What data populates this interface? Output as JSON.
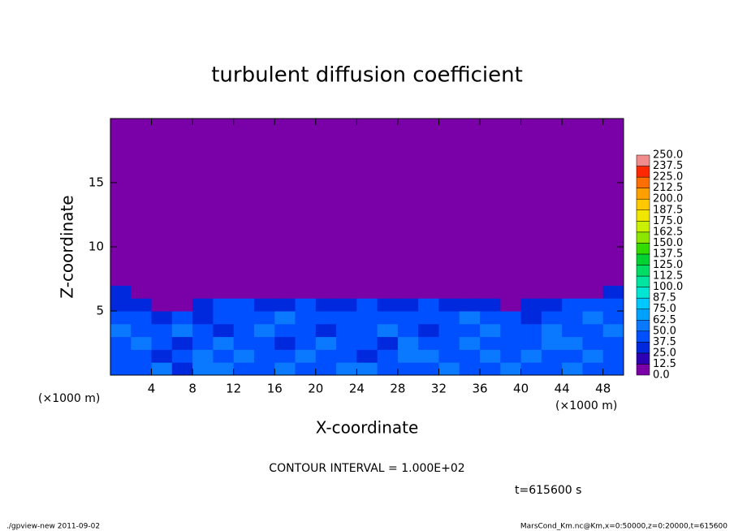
{
  "chart_data": {
    "type": "heatmap",
    "title": "turbulent diffusion coefficient",
    "x_label": "X-coordinate",
    "y_label": "Z-coordinate",
    "x_unit": "(×1000 m)",
    "y_unit": "(×1000 m)",
    "contour_note": "CONTOUR INTERVAL = 1.000E+02",
    "time_label": "t=615600 s",
    "footer_left": "./gpview-new   2011-09-02",
    "footer_right": "MarsCond_Km.nc@Km,x=0:50000,z=0:20000,t=615600",
    "xlim": [
      0,
      50
    ],
    "ylim": [
      0,
      20
    ],
    "xticks": [
      4,
      8,
      12,
      16,
      20,
      24,
      28,
      32,
      36,
      40,
      44,
      48
    ],
    "yticks": [
      5,
      10,
      15
    ],
    "x": [
      0,
      2,
      4,
      6,
      8,
      10,
      12,
      14,
      16,
      18,
      20,
      22,
      24,
      26,
      28,
      30,
      32,
      34,
      36,
      38,
      40,
      42,
      44,
      46,
      48,
      50
    ],
    "y": [
      0,
      1,
      2,
      3,
      4,
      5,
      6,
      7,
      8,
      9,
      10,
      11,
      12,
      13,
      14,
      15,
      16,
      17,
      18,
      19,
      20
    ],
    "levels": [
      {
        "value": 0,
        "label": "0.0"
      },
      {
        "value": 12.5,
        "label": "12.5"
      },
      {
        "value": 25,
        "label": "25.0"
      },
      {
        "value": 37.5,
        "label": "37.5"
      },
      {
        "value": 50,
        "label": "50.0"
      },
      {
        "value": 62.5,
        "label": "62.5"
      },
      {
        "value": 75,
        "label": "75.0"
      },
      {
        "value": 87.5,
        "label": "87.5"
      },
      {
        "value": 100,
        "label": "100.0"
      },
      {
        "value": 112.5,
        "label": "112.5"
      },
      {
        "value": 125,
        "label": "125.0"
      },
      {
        "value": 137.5,
        "label": "137.5"
      },
      {
        "value": 150,
        "label": "150.0"
      },
      {
        "value": 162.5,
        "label": "162.5"
      },
      {
        "value": 175,
        "label": "175.0"
      },
      {
        "value": 187.5,
        "label": "187.5"
      },
      {
        "value": 200,
        "label": "200.0"
      },
      {
        "value": 212.5,
        "label": "212.5"
      },
      {
        "value": 225,
        "label": "225.0"
      },
      {
        "value": 237.5,
        "label": "237.5"
      },
      {
        "value": 250,
        "label": "250.0"
      }
    ],
    "colors": [
      "#7a00a8",
      "#2d00b4",
      "#0028dc",
      "#0050ff",
      "#0a78ff",
      "#00a0ff",
      "#00c8ff",
      "#00e6d2",
      "#00e6a0",
      "#00dc64",
      "#00d232",
      "#32dc00",
      "#8ce600",
      "#c8f000",
      "#f0e600",
      "#ffc800",
      "#ffa000",
      "#ff6e00",
      "#ff2800",
      "#f08c8c"
    ],
    "z": [
      [
        45,
        40,
        50,
        35,
        60,
        55,
        45,
        40,
        50,
        45,
        40,
        55,
        50,
        45,
        40,
        45,
        50,
        40,
        45,
        55,
        40,
        45,
        50,
        45,
        40
      ],
      [
        40,
        45,
        35,
        40,
        50,
        45,
        55,
        40,
        45,
        50,
        45,
        40,
        35,
        45,
        55,
        60,
        45,
        40,
        50,
        45,
        55,
        40,
        45,
        50,
        45
      ],
      [
        45,
        50,
        40,
        35,
        45,
        50,
        40,
        45,
        35,
        40,
        50,
        45,
        40,
        35,
        50,
        45,
        40,
        50,
        45,
        40,
        45,
        50,
        55,
        45,
        40
      ],
      [
        50,
        40,
        45,
        50,
        40,
        35,
        45,
        50,
        40,
        45,
        35,
        40,
        45,
        50,
        40,
        35,
        45,
        40,
        50,
        45,
        40,
        55,
        45,
        40,
        50
      ],
      [
        40,
        45,
        35,
        40,
        35,
        45,
        40,
        45,
        50,
        40,
        45,
        40,
        45,
        40,
        45,
        40,
        45,
        50,
        40,
        45,
        35,
        40,
        45,
        50,
        45
      ],
      [
        35,
        30,
        0,
        0,
        25,
        45,
        40,
        30,
        35,
        40,
        25,
        30,
        40,
        35,
        30,
        40,
        35,
        25,
        30,
        0,
        30,
        35,
        40,
        45,
        40
      ],
      [
        30,
        0,
        0,
        0,
        0,
        0,
        0,
        0,
        0,
        0,
        0,
        0,
        0,
        0,
        0,
        0,
        0,
        0,
        0,
        0,
        0,
        0,
        0,
        0,
        30
      ],
      [
        0,
        0,
        0,
        0,
        0,
        0,
        0,
        0,
        0,
        0,
        0,
        0,
        0,
        0,
        0,
        0,
        0,
        0,
        0,
        0,
        0,
        0,
        0,
        0,
        0
      ],
      [
        0,
        0,
        0,
        0,
        0,
        0,
        0,
        0,
        0,
        0,
        0,
        0,
        0,
        0,
        0,
        0,
        0,
        0,
        0,
        0,
        0,
        0,
        0,
        0,
        0
      ],
      [
        0,
        0,
        0,
        0,
        0,
        0,
        0,
        0,
        0,
        0,
        0,
        0,
        0,
        0,
        0,
        0,
        0,
        0,
        0,
        0,
        0,
        0,
        0,
        0,
        0
      ],
      [
        0,
        0,
        0,
        0,
        0,
        0,
        0,
        0,
        0,
        0,
        0,
        0,
        0,
        0,
        0,
        0,
        0,
        0,
        0,
        0,
        0,
        0,
        0,
        0,
        0
      ],
      [
        0,
        0,
        0,
        0,
        0,
        0,
        0,
        0,
        0,
        0,
        0,
        0,
        0,
        0,
        0,
        0,
        0,
        0,
        0,
        0,
        0,
        0,
        0,
        0,
        0
      ],
      [
        0,
        0,
        0,
        0,
        0,
        0,
        0,
        0,
        0,
        0,
        0,
        0,
        0,
        0,
        0,
        0,
        0,
        0,
        0,
        0,
        0,
        0,
        0,
        0,
        0
      ],
      [
        0,
        0,
        0,
        0,
        0,
        0,
        0,
        0,
        0,
        0,
        0,
        0,
        0,
        0,
        0,
        0,
        0,
        0,
        0,
        0,
        0,
        0,
        0,
        0,
        0
      ],
      [
        0,
        0,
        0,
        0,
        0,
        0,
        0,
        0,
        0,
        0,
        0,
        0,
        0,
        0,
        0,
        0,
        0,
        0,
        0,
        0,
        0,
        0,
        0,
        0,
        0
      ],
      [
        0,
        0,
        0,
        0,
        0,
        0,
        0,
        0,
        0,
        0,
        0,
        0,
        0,
        0,
        0,
        0,
        0,
        0,
        0,
        0,
        0,
        0,
        0,
        0,
        0
      ],
      [
        0,
        0,
        0,
        0,
        0,
        0,
        0,
        0,
        0,
        0,
        0,
        0,
        0,
        0,
        0,
        0,
        0,
        0,
        0,
        0,
        0,
        0,
        0,
        0,
        0
      ],
      [
        0,
        0,
        0,
        0,
        0,
        0,
        0,
        0,
        0,
        0,
        0,
        0,
        0,
        0,
        0,
        0,
        0,
        0,
        0,
        0,
        0,
        0,
        0,
        0,
        0
      ],
      [
        0,
        0,
        0,
        0,
        0,
        0,
        0,
        0,
        0,
        0,
        0,
        0,
        0,
        0,
        0,
        0,
        0,
        0,
        0,
        0,
        0,
        0,
        0,
        0,
        0
      ],
      [
        0,
        0,
        0,
        0,
        0,
        0,
        0,
        0,
        0,
        0,
        0,
        0,
        0,
        0,
        0,
        0,
        0,
        0,
        0,
        0,
        0,
        0,
        0,
        0,
        0
      ]
    ]
  }
}
